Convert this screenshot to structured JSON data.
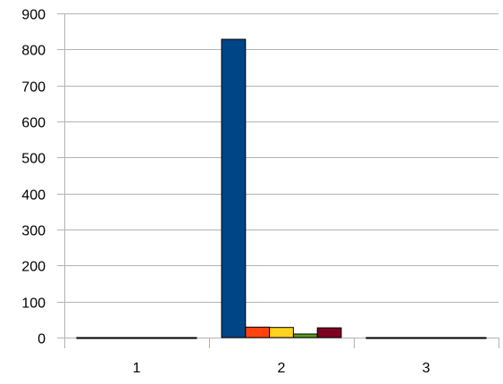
{
  "chart_data": {
    "type": "bar",
    "title": "",
    "xlabel": "",
    "ylabel": "",
    "categories": [
      "1",
      "2",
      "3"
    ],
    "ylim": [
      0,
      900
    ],
    "yticks": [
      0,
      100,
      200,
      300,
      400,
      500,
      600,
      700,
      800,
      900
    ],
    "grid": true,
    "legend": "none",
    "series": [
      {
        "color": "#004586",
        "values": [
          0,
          828,
          0
        ]
      },
      {
        "color": "#ff420e",
        "values": [
          0,
          29,
          0
        ]
      },
      {
        "color": "#ffd320",
        "values": [
          0,
          28,
          0
        ]
      },
      {
        "color": "#579d1c",
        "values": [
          0,
          10,
          0
        ]
      },
      {
        "color": "#7e0021",
        "values": [
          0,
          27,
          0
        ]
      }
    ]
  }
}
